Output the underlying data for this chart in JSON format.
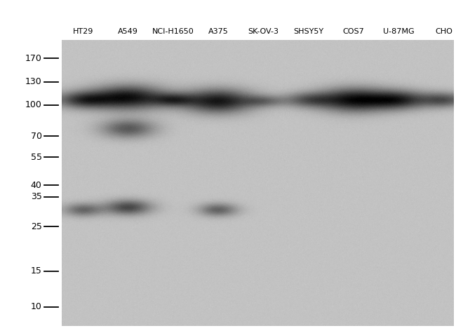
{
  "gel_bg": 0.76,
  "white_bg": 1.0,
  "marker_labels": [
    "170",
    "130",
    "100",
    "70",
    "55",
    "40",
    "35",
    "25",
    "15",
    "10"
  ],
  "marker_kda": [
    170,
    130,
    100,
    70,
    55,
    40,
    35,
    25,
    15,
    10
  ],
  "lane_labels": [
    "HT29",
    "A549",
    "NCI-H1650",
    "A375",
    "SK-OV-3",
    "SHSY5Y",
    "COS7",
    "U-87MG",
    "CHO"
  ],
  "kda_min": 8,
  "kda_max": 210,
  "bands": [
    {
      "lane": 0,
      "kda": 105,
      "intensity": 0.72,
      "bw": 28,
      "bh": 9,
      "blur": 4.0
    },
    {
      "lane": 1,
      "kda": 108,
      "intensity": 0.97,
      "bw": 38,
      "bh": 13,
      "blur": 5.5
    },
    {
      "lane": 1,
      "kda": 76,
      "intensity": 0.6,
      "bw": 28,
      "bh": 10,
      "blur": 5.0
    },
    {
      "lane": 2,
      "kda": 105,
      "intensity": 0.58,
      "bw": 22,
      "bh": 7,
      "blur": 3.5
    },
    {
      "lane": 3,
      "kda": 104,
      "intensity": 0.93,
      "bw": 36,
      "bh": 13,
      "blur": 5.0
    },
    {
      "lane": 4,
      "kda": 104,
      "intensity": 0.42,
      "bw": 22,
      "bh": 6,
      "blur": 3.5
    },
    {
      "lane": 5,
      "kda": 105,
      "intensity": 0.55,
      "bw": 26,
      "bh": 8,
      "blur": 4.0
    },
    {
      "lane": 6,
      "kda": 105,
      "intensity": 0.95,
      "bw": 36,
      "bh": 13,
      "blur": 5.0
    },
    {
      "lane": 7,
      "kda": 105,
      "intensity": 0.8,
      "bw": 30,
      "bh": 10,
      "blur": 4.5
    },
    {
      "lane": 8,
      "kda": 105,
      "intensity": 0.62,
      "bw": 24,
      "bh": 8,
      "blur": 4.0
    },
    {
      "lane": 0,
      "kda": 30,
      "intensity": 0.52,
      "bw": 20,
      "bh": 7,
      "blur": 3.5
    },
    {
      "lane": 1,
      "kda": 31,
      "intensity": 0.7,
      "bw": 24,
      "bh": 8,
      "blur": 4.0
    },
    {
      "lane": 3,
      "kda": 30,
      "intensity": 0.55,
      "bw": 20,
      "bh": 7,
      "blur": 3.5
    }
  ],
  "label_fontsize": 8.0,
  "marker_fontsize": 9.0
}
